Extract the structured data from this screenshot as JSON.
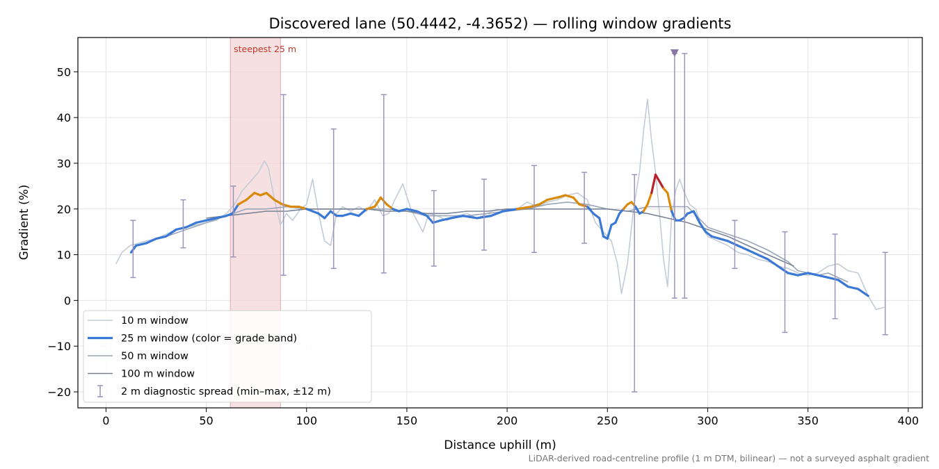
{
  "chart_data": {
    "type": "line",
    "title": "Discovered lane (50.4442, -4.3652) — rolling window gradients",
    "xlabel": "Distance uphill (m)",
    "ylabel": "Gradient (%)",
    "xlim": [
      -14,
      407
    ],
    "ylim": [
      -23.5,
      57.5
    ],
    "xticks": [
      0,
      50,
      100,
      150,
      200,
      250,
      300,
      350,
      400
    ],
    "yticks": [
      -20,
      -10,
      0,
      10,
      20,
      30,
      40,
      50
    ],
    "xtick_labels": [
      "0",
      "50",
      "100",
      "150",
      "200",
      "250",
      "300",
      "350",
      "400"
    ],
    "ytick_labels": [
      "−20",
      "−10",
      "0",
      "10",
      "20",
      "30",
      "40",
      "50"
    ],
    "grid": true,
    "legend_position": "lower-left",
    "footnote": "LiDAR-derived road-centreline profile (1 m DTM, bilinear) — not a surveyed asphalt gradient",
    "highlight_band": {
      "x_start": 62,
      "x_end": 87,
      "label": "steepest 25 m",
      "color": "#f4d5d8"
    },
    "peak_marker": {
      "x": 283.5,
      "y": 54,
      "color": "#8878a8"
    },
    "grade_band_colors": {
      "below_20": "#3a78d6",
      "20_to_25": "#d98a0b",
      "above_25": "#b8202a"
    },
    "series": [
      {
        "name": "10 m window",
        "color": "#c3ccd6",
        "x": [
          5,
          8,
          12,
          16,
          20,
          25,
          30,
          35,
          40,
          45,
          50,
          55,
          60,
          64,
          68,
          72,
          76,
          79,
          81,
          84,
          87,
          90,
          93,
          97,
          100,
          103,
          106,
          109,
          112,
          115,
          118,
          122,
          126,
          130,
          134,
          138,
          141,
          144,
          148,
          152,
          155,
          158,
          161,
          165,
          170,
          175,
          180,
          185,
          190,
          195,
          200,
          205,
          210,
          215,
          220,
          225,
          230,
          235,
          240,
          244,
          248,
          252,
          255,
          257,
          260,
          263,
          266,
          268,
          270,
          272,
          274,
          276,
          278,
          280,
          282,
          284,
          286,
          288,
          291,
          294,
          297,
          300,
          305,
          310,
          315,
          320,
          325,
          330,
          335,
          340,
          345,
          350,
          355,
          360,
          365,
          370,
          375,
          380,
          384,
          388
        ],
        "y": [
          8,
          10.5,
          12,
          12.5,
          13,
          13.5,
          14.5,
          15.5,
          16,
          16.5,
          17,
          17.5,
          19,
          21,
          24,
          26,
          28,
          30.5,
          29,
          22,
          16.5,
          19,
          17.5,
          20,
          21,
          26.5,
          19,
          13,
          12,
          19,
          20.5,
          19.5,
          20.5,
          19.5,
          22,
          18.5,
          19,
          22,
          25.5,
          20,
          17.5,
          15,
          19,
          18.5,
          17.5,
          18.5,
          19,
          18,
          19,
          20,
          19.5,
          20,
          21.5,
          20.5,
          21.5,
          22,
          23,
          23.5,
          22,
          17,
          15,
          13,
          8,
          1.5,
          8,
          20,
          28,
          37,
          44,
          35,
          28,
          19,
          9,
          3,
          18,
          24,
          26.5,
          24,
          21,
          20,
          16,
          14,
          13,
          12,
          10.5,
          10,
          9,
          8.5,
          7.5,
          7,
          6,
          5.5,
          6,
          7.5,
          8,
          6.5,
          6,
          1,
          -2,
          -1.5
        ]
      },
      {
        "name": "25 m window (color = grade band)",
        "color": "#3a78d6",
        "colored_by": "grade band",
        "x": [
          12.5,
          15,
          20,
          25,
          30,
          35,
          40,
          45,
          50,
          55,
          60,
          63,
          66,
          70,
          74,
          77,
          80,
          84,
          88,
          92,
          96,
          100,
          103,
          106,
          109,
          112,
          115,
          118,
          122,
          126,
          130,
          134,
          137,
          140,
          143,
          146,
          150,
          155,
          160,
          163,
          167,
          172,
          178,
          185,
          192,
          198,
          205,
          212,
          216,
          220,
          225,
          229,
          233,
          236,
          240,
          243,
          246,
          248,
          250,
          252,
          254,
          256,
          258,
          260,
          262,
          264,
          266,
          268,
          270,
          272,
          274,
          276,
          278,
          280,
          282,
          284,
          286,
          288,
          290,
          293,
          296,
          299,
          302,
          306,
          310,
          315,
          320,
          325,
          330,
          335,
          340,
          345,
          350,
          355,
          360,
          365,
          370,
          375,
          380
        ],
        "y": [
          10.5,
          12,
          12.5,
          13.5,
          14,
          15.5,
          16,
          17,
          17.5,
          18,
          18.5,
          19,
          21,
          22,
          23.5,
          23,
          23.5,
          22,
          21,
          20.5,
          20.5,
          20,
          19.5,
          19,
          18,
          19.5,
          18.5,
          18.5,
          19,
          18.5,
          20,
          20.5,
          22.5,
          21,
          20,
          19.5,
          20,
          19.5,
          18.5,
          17,
          17.5,
          18,
          18.5,
          18,
          18.5,
          19.5,
          20,
          20.5,
          21,
          22,
          22.5,
          23,
          22.5,
          21,
          20.5,
          19,
          18,
          14,
          13.5,
          16.5,
          17,
          19,
          20,
          21,
          21.5,
          20.5,
          19,
          19.5,
          21,
          23.5,
          27.5,
          26,
          24.5,
          23.5,
          19.5,
          17.5,
          17.5,
          18,
          19,
          19.5,
          17,
          15,
          14,
          13.5,
          13,
          12,
          11,
          10,
          9,
          7.5,
          6,
          5.5,
          6,
          5.5,
          5,
          4.5,
          3,
          2.5,
          1
        ]
      },
      {
        "name": "50 m window",
        "color": "#9aa5b8",
        "x": [
          25,
          30,
          40,
          50,
          60,
          70,
          80,
          90,
          100,
          110,
          120,
          130,
          140,
          150,
          160,
          170,
          180,
          190,
          200,
          210,
          220,
          230,
          240,
          250,
          260,
          270,
          280,
          290,
          300,
          310,
          320,
          330,
          340,
          345,
          350,
          355,
          360,
          365,
          370
        ],
        "y": [
          13.5,
          14,
          15.5,
          17,
          18.5,
          20,
          20,
          20.5,
          20,
          20,
          20,
          20,
          20,
          19.5,
          18.5,
          18.5,
          18.5,
          19,
          19.5,
          20,
          21,
          21.5,
          21,
          20,
          19.5,
          20.5,
          20.5,
          20.5,
          16,
          14.5,
          13,
          11,
          8.5,
          6.5,
          6,
          5.5,
          6,
          5,
          4
        ]
      },
      {
        "name": "100 m window",
        "color": "#7a8394",
        "x": [
          50,
          60,
          70,
          80,
          90,
          100,
          110,
          120,
          130,
          140,
          150,
          160,
          170,
          180,
          190,
          200,
          210,
          220,
          230,
          240,
          250,
          260,
          270,
          280,
          290,
          300,
          310,
          320,
          330,
          343
        ],
        "y": [
          18,
          18.5,
          19,
          19.5,
          19.5,
          20,
          20,
          20,
          20,
          19.5,
          19.5,
          19,
          19,
          19.5,
          19.5,
          20,
          20,
          20,
          20,
          20,
          20,
          19.5,
          19,
          18,
          17,
          15.5,
          14,
          12,
          10,
          7.5
        ]
      },
      {
        "name": "2 m diagnostic spread (min–max, ±12 m)",
        "color": "#9a93ba",
        "type": "errorbar",
        "points": [
          {
            "x": 13.5,
            "min": 5,
            "max": 17.5
          },
          {
            "x": 38.5,
            "min": 11.5,
            "max": 22
          },
          {
            "x": 63.5,
            "min": 9.5,
            "max": 25
          },
          {
            "x": 88.5,
            "min": 5.5,
            "max": 45
          },
          {
            "x": 113.5,
            "min": 7,
            "max": 37.5
          },
          {
            "x": 138.5,
            "min": 6,
            "max": 45
          },
          {
            "x": 163.5,
            "min": 7.5,
            "max": 24
          },
          {
            "x": 188.5,
            "min": 11,
            "max": 26.5
          },
          {
            "x": 213.5,
            "min": 10.5,
            "max": 29.5
          },
          {
            "x": 238.5,
            "min": 12.5,
            "max": 28
          },
          {
            "x": 263.5,
            "min": -20,
            "max": 27.5
          },
          {
            "x": 283.5,
            "min": 0.5,
            "max": 54
          },
          {
            "x": 288.5,
            "min": 0.5,
            "max": 54
          },
          {
            "x": 313.5,
            "min": 7,
            "max": 17.5
          },
          {
            "x": 338.5,
            "min": -7,
            "max": 15
          },
          {
            "x": 363.5,
            "min": -4,
            "max": 14.5
          },
          {
            "x": 388.5,
            "min": -7.5,
            "max": 10.5
          }
        ]
      }
    ]
  }
}
